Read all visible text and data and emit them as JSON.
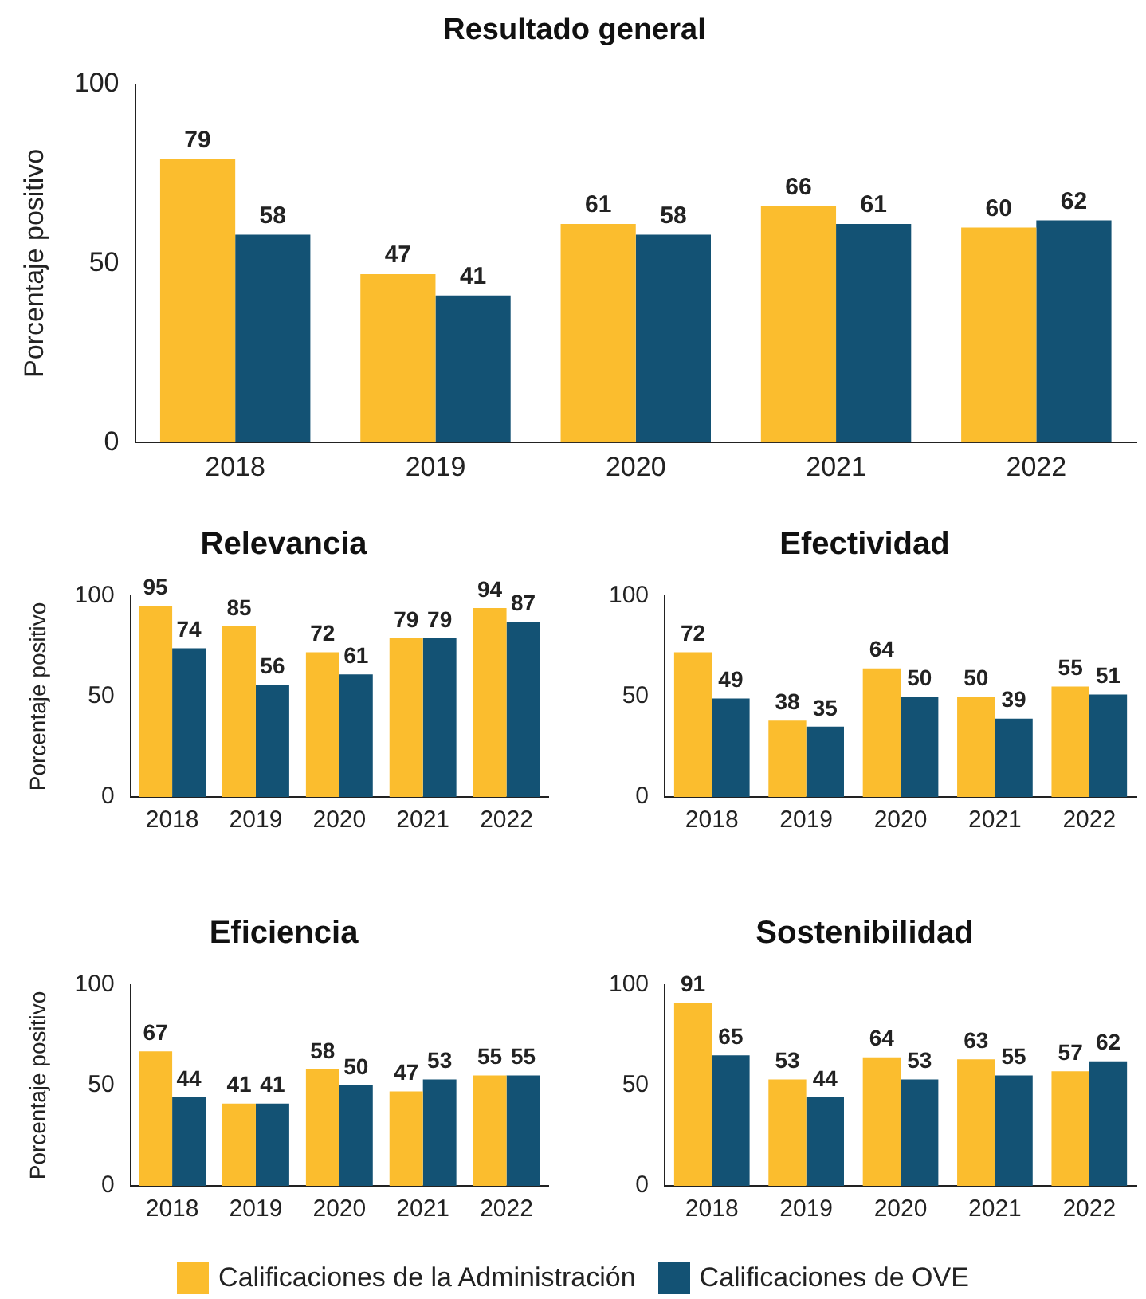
{
  "chart_data": [
    {
      "type": "bar",
      "title": "Resultado general",
      "ylabel": "Porcentaje positivo",
      "categories": [
        "2018",
        "2019",
        "2020",
        "2021",
        "2022"
      ],
      "ylim": [
        0,
        100
      ],
      "yticks": [
        0,
        50,
        100
      ],
      "grid": false,
      "data_labels": true,
      "legend": "bottom",
      "series": [
        {
          "name": "Calificaciones de la Administración",
          "color": "#fbbd2e",
          "values": [
            79,
            47,
            61,
            66,
            60
          ]
        },
        {
          "name": "Calificaciones de OVE",
          "color": "#135274",
          "values": [
            58,
            41,
            58,
            61,
            62
          ]
        }
      ]
    },
    {
      "type": "bar",
      "title": "Relevancia",
      "ylabel": "Porcentaje positivo",
      "categories": [
        "2018",
        "2019",
        "2020",
        "2021",
        "2022"
      ],
      "ylim": [
        0,
        100
      ],
      "yticks": [
        0,
        50,
        100
      ],
      "grid": false,
      "data_labels": true,
      "series": [
        {
          "color": "#fbbd2e",
          "values": [
            95,
            85,
            72,
            79,
            94
          ]
        },
        {
          "color": "#135274",
          "values": [
            74,
            56,
            61,
            79,
            87
          ]
        }
      ]
    },
    {
      "type": "bar",
      "title": "Efectividad",
      "categories": [
        "2018",
        "2019",
        "2020",
        "2021",
        "2022"
      ],
      "ylim": [
        0,
        100
      ],
      "yticks": [
        0,
        50,
        100
      ],
      "grid": false,
      "data_labels": true,
      "series": [
        {
          "color": "#fbbd2e",
          "values": [
            72,
            38,
            64,
            50,
            55
          ]
        },
        {
          "color": "#135274",
          "values": [
            49,
            35,
            50,
            39,
            51
          ]
        }
      ]
    },
    {
      "type": "bar",
      "title": "Eficiencia",
      "ylabel": "Porcentaje positivo",
      "categories": [
        "2018",
        "2019",
        "2020",
        "2021",
        "2022"
      ],
      "ylim": [
        0,
        100
      ],
      "yticks": [
        0,
        50,
        100
      ],
      "grid": false,
      "data_labels": true,
      "series": [
        {
          "color": "#fbbd2e",
          "values": [
            67,
            41,
            58,
            47,
            55
          ]
        },
        {
          "color": "#135274",
          "values": [
            44,
            41,
            50,
            53,
            55
          ]
        }
      ]
    },
    {
      "type": "bar",
      "title": "Sostenibilidad",
      "categories": [
        "2018",
        "2019",
        "2020",
        "2021",
        "2022"
      ],
      "ylim": [
        0,
        100
      ],
      "yticks": [
        0,
        50,
        100
      ],
      "grid": false,
      "data_labels": true,
      "series": [
        {
          "color": "#fbbd2e",
          "values": [
            91,
            53,
            64,
            63,
            57
          ]
        },
        {
          "color": "#135274",
          "values": [
            65,
            44,
            53,
            55,
            62
          ]
        }
      ]
    }
  ]
}
